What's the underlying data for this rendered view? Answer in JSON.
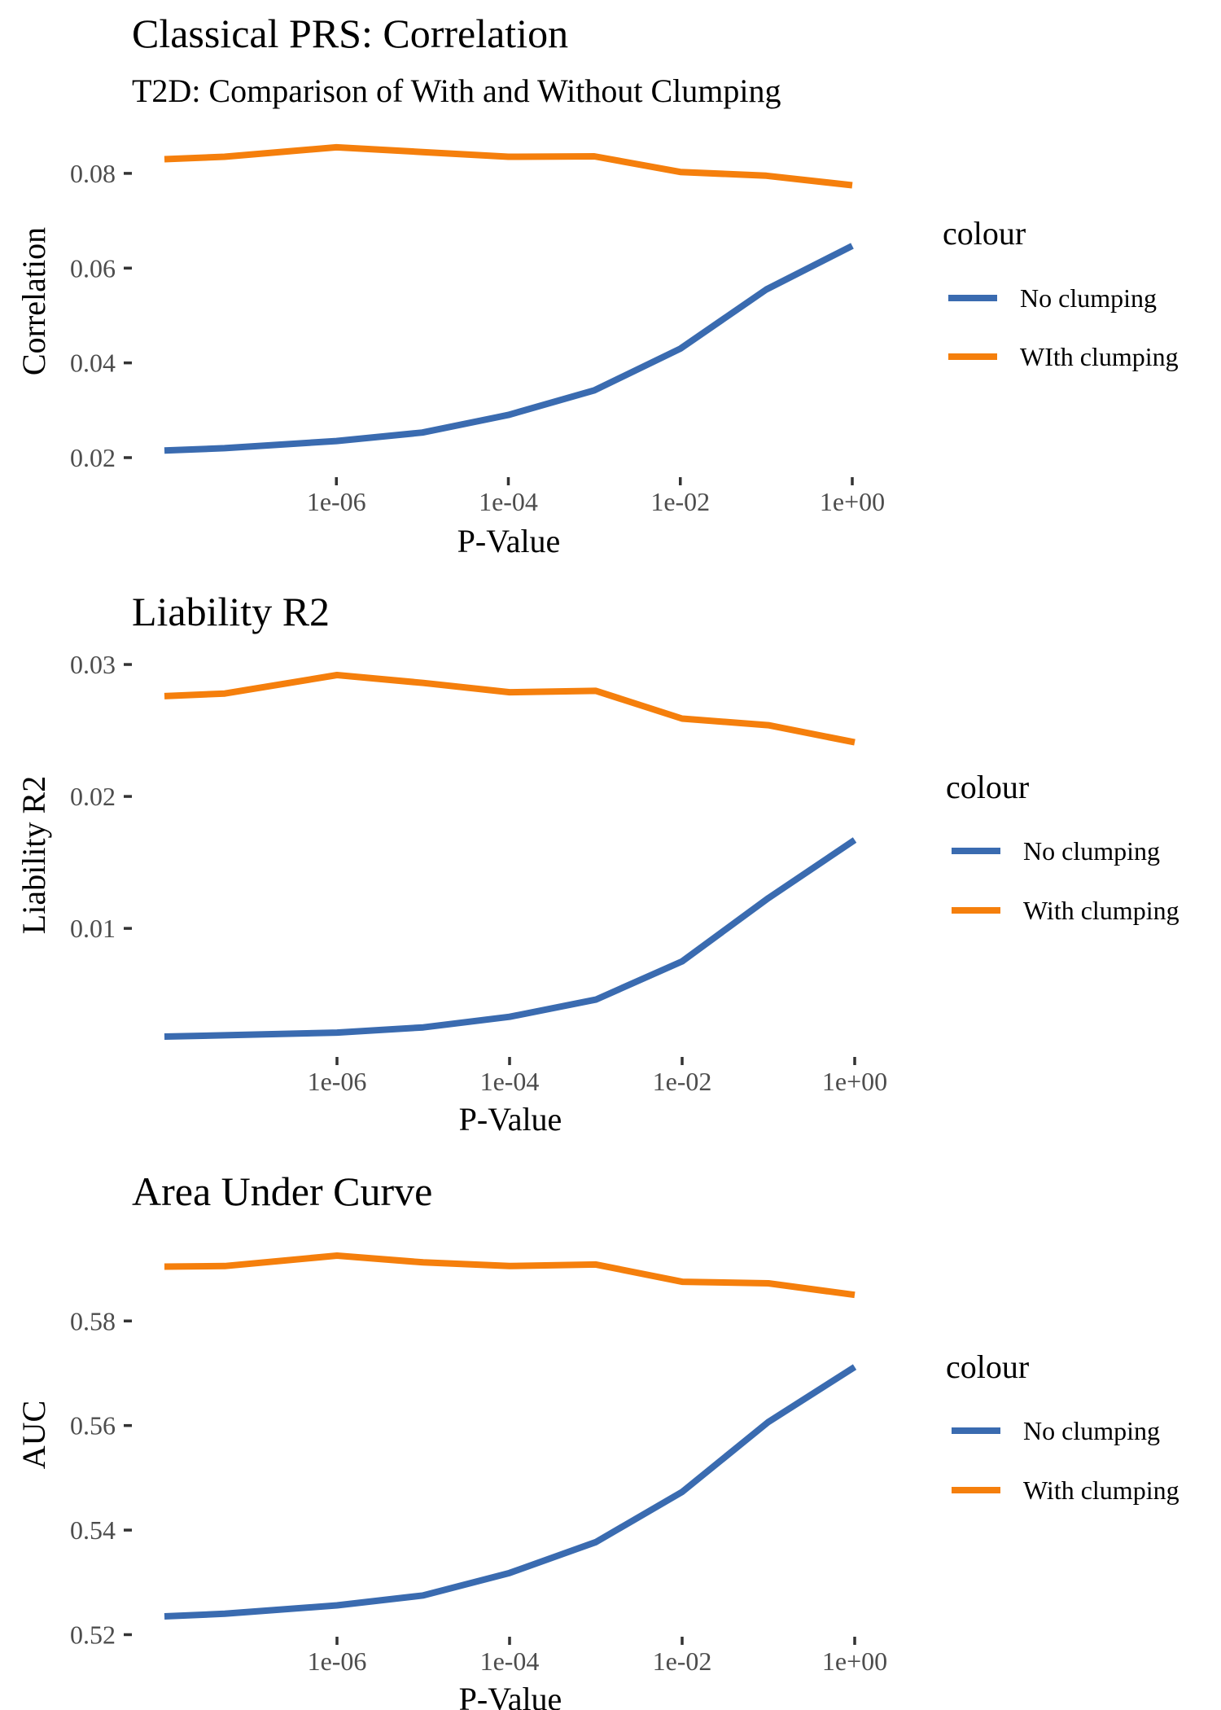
{
  "chart_data": [
    {
      "type": "line",
      "title": "Classical PRS: Correlation",
      "subtitle": "T2D: Comparison of With and Without Clumping",
      "xlabel": "P-Value",
      "ylabel": "Correlation",
      "x_scale": "log10",
      "xlim": [
        1e-08,
        1
      ],
      "x": [
        1e-08,
        5e-08,
        1e-06,
        1e-05,
        0.0001,
        0.001,
        0.01,
        0.1,
        1
      ],
      "x_ticks": [
        1e-06,
        0.0001,
        0.01,
        1
      ],
      "x_tick_labels": [
        "1e-06",
        "1e-04",
        "1e-02",
        "1e+00"
      ],
      "ylim": [
        0.02,
        0.086
      ],
      "y_ticks": [
        0.02,
        0.04,
        0.06,
        0.08
      ],
      "y_tick_labels": [
        "0.02",
        "0.04",
        "0.06",
        "0.08"
      ],
      "grid": false,
      "legend": {
        "title": "colour",
        "position": "right"
      },
      "series": [
        {
          "name": "No clumping",
          "color": "#3a6bb0",
          "values": [
            0.0215,
            0.022,
            0.0235,
            0.0253,
            0.029,
            0.0342,
            0.043,
            0.0555,
            0.0647
          ]
        },
        {
          "name": "WIth clumping",
          "color": "#f57f0c",
          "values": [
            0.083,
            0.0835,
            0.0855,
            0.0845,
            0.0835,
            0.0836,
            0.0803,
            0.0795,
            0.0775
          ]
        }
      ]
    },
    {
      "type": "line",
      "title": "Liability R2",
      "xlabel": "P-Value",
      "ylabel": "Liability R2",
      "x_scale": "log10",
      "xlim": [
        1e-08,
        1
      ],
      "x": [
        1e-08,
        5e-08,
        1e-06,
        1e-05,
        0.0001,
        0.001,
        0.01,
        0.1,
        1
      ],
      "x_ticks": [
        1e-06,
        0.0001,
        0.01,
        1
      ],
      "x_tick_labels": [
        "1e-06",
        "1e-04",
        "1e-02",
        "1e+00"
      ],
      "ylim": [
        0.0018,
        0.0292
      ],
      "y_ticks": [
        0.01,
        0.02,
        0.03
      ],
      "y_tick_labels": [
        "0.01",
        "0.02",
        "0.03"
      ],
      "grid": false,
      "legend": {
        "title": "colour",
        "position": "right"
      },
      "series": [
        {
          "name": "No clumping",
          "color": "#3a6bb0",
          "values": [
            0.0018,
            0.0019,
            0.0021,
            0.0025,
            0.0033,
            0.0046,
            0.0075,
            0.0123,
            0.0167
          ]
        },
        {
          "name": "With clumping",
          "color": "#f57f0c",
          "values": [
            0.0276,
            0.0278,
            0.0292,
            0.0286,
            0.0279,
            0.028,
            0.0259,
            0.0254,
            0.0241
          ]
        }
      ]
    },
    {
      "type": "line",
      "title": "Area Under Curve",
      "xlabel": "P-Value",
      "ylabel": "AUC",
      "x_scale": "log10",
      "xlim": [
        1e-08,
        1
      ],
      "x": [
        1e-08,
        5e-08,
        1e-06,
        1e-05,
        0.0001,
        0.001,
        0.01,
        0.1,
        1
      ],
      "x_ticks": [
        1e-06,
        0.0001,
        0.01,
        1
      ],
      "x_tick_labels": [
        "1e-06",
        "1e-04",
        "1e-02",
        "1e+00"
      ],
      "ylim": [
        0.5235,
        0.5925
      ],
      "y_ticks": [
        0.52,
        0.54,
        0.56,
        0.58
      ],
      "y_tick_labels": [
        "0.52",
        "0.54",
        "0.56",
        "0.58"
      ],
      "grid": false,
      "legend": {
        "title": "colour",
        "position": "right"
      },
      "series": [
        {
          "name": "No clumping",
          "color": "#3a6bb0",
          "values": [
            0.5235,
            0.524,
            0.5256,
            0.5275,
            0.5318,
            0.5377,
            0.5473,
            0.5607,
            0.5712
          ]
        },
        {
          "name": "With clumping",
          "color": "#f57f0c",
          "values": [
            0.5904,
            0.5905,
            0.5925,
            0.5912,
            0.5905,
            0.5908,
            0.5875,
            0.5872,
            0.585
          ]
        }
      ]
    }
  ]
}
